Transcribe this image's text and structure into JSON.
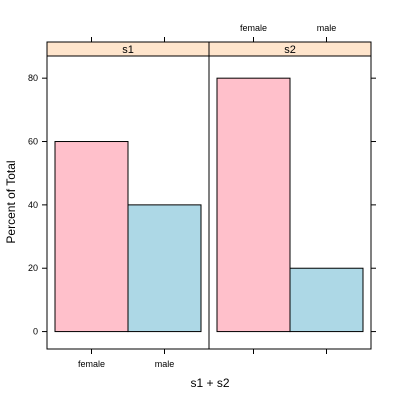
{
  "chart_data": {
    "type": "bar",
    "xlabel": "s1 + s2",
    "ylabel": "Percent of Total",
    "ylim": [
      -5.5,
      87
    ],
    "yticks": [
      0,
      20,
      40,
      60,
      80
    ],
    "categories": [
      "female",
      "male"
    ],
    "category_colors": [
      "#ffc0cb",
      "#add8e6"
    ],
    "strip_color": "#ffe5cc",
    "panels": [
      {
        "name": "s1",
        "values": [
          60,
          40
        ]
      },
      {
        "name": "s2",
        "values": [
          80,
          20
        ]
      }
    ]
  }
}
